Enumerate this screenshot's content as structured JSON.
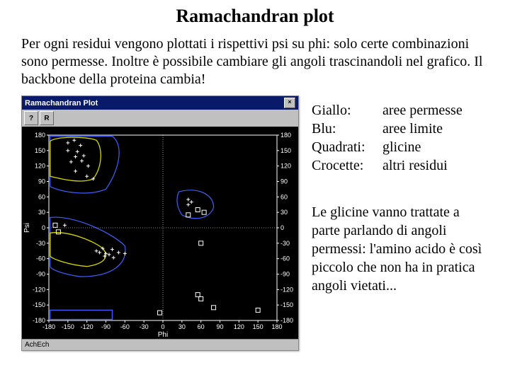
{
  "title": "Ramachandran plot",
  "intro": "Per ogni residui vengono plottati i rispettivi psi su phi: solo certe combinazioni sono permesse. Inoltre è possibile cambiare gli angoli trascinandoli nel grafico. Il backbone della proteina cambia!",
  "window": {
    "title": "Ramachandran Plot",
    "close": "×",
    "help_btn": "?",
    "r_btn": "R",
    "status": "AchEch"
  },
  "legend": {
    "rows": [
      {
        "key": "Giallo:",
        "val": "aree permesse"
      },
      {
        "key": "Blu:",
        "val": "aree limite"
      },
      {
        "key": "Quadrati:",
        "val": "glicine"
      },
      {
        "key": "Crocette:",
        "val": "altri residui"
      }
    ]
  },
  "note": "Le glicine vanno trattate a parte parlando di angoli permessi: l'amino acido è così piccolo che non ha in pratica angoli vietati...",
  "plot": {
    "bg": "#000000",
    "axis_color": "#ffffff",
    "allowed_color": "#d8d800",
    "partial_color": "#4060ff",
    "cross_color": "#ffffff",
    "square_color": "#ffffff",
    "xlabel": "Phi",
    "ylabel": "Psi",
    "xlim": [
      -180,
      180
    ],
    "ylim": [
      -180,
      180
    ],
    "ticks": [
      -180,
      -150,
      -120,
      -90,
      -60,
      -30,
      0,
      30,
      60,
      90,
      120,
      150,
      180
    ],
    "crosses": [
      [
        -150,
        165
      ],
      [
        -140,
        170
      ],
      [
        -130,
        160
      ],
      [
        -150,
        150
      ],
      [
        -135,
        148
      ],
      [
        -125,
        140
      ],
      [
        -138,
        138
      ],
      [
        -145,
        128
      ],
      [
        -128,
        130
      ],
      [
        -118,
        120
      ],
      [
        -138,
        110
      ],
      [
        -120,
        100
      ],
      [
        -110,
        95
      ],
      [
        -155,
        5
      ],
      [
        -95,
        -40
      ],
      [
        -100,
        -48
      ],
      [
        -105,
        -45
      ],
      [
        -90,
        -50
      ],
      [
        -92,
        -55
      ],
      [
        -85,
        -52
      ],
      [
        -78,
        -58
      ],
      [
        -60,
        -50
      ],
      [
        40,
        55
      ],
      [
        45,
        50
      ],
      [
        40,
        45
      ],
      [
        -80,
        -42
      ],
      [
        -70,
        -48
      ]
    ],
    "squares": [
      [
        55,
        35
      ],
      [
        65,
        30
      ],
      [
        40,
        25
      ],
      [
        60,
        -30
      ],
      [
        55,
        -130
      ],
      [
        60,
        -138
      ],
      [
        80,
        -155
      ],
      [
        -5,
        -165
      ],
      [
        -170,
        5
      ],
      [
        -165,
        -8
      ],
      [
        150,
        -160
      ]
    ],
    "allowed_regions": [
      "M -178 168 C -170 178 -120 178 -105 170 C -95 155 -95 120 -110 95 C -130 85 -160 95 -178 100 Z",
      "M -178 -10 C -150 -5 -110 -25 -95 -40 C -85 -55 -90 -70 -120 -75 C -150 -72 -175 -60 -178 -55 Z"
    ],
    "partial_regions": [
      "M -178 178 L -80 178 C -60 160 -70 110 -90 75 C -120 60 -160 70 -178 80 Z",
      "M -178 20 C -140 25 -80 -10 -60 -35 C -55 -70 -80 -95 -130 -95 C -160 -90 -178 -80 -178 -75 Z",
      "M 25 70 C 55 80 80 65 80 40 C 75 18 50 12 30 25 C 22 40 20 55 25 70 Z",
      "M -178 -160 L -80 -160 L -80 -178 L -178 -178 Z"
    ]
  }
}
